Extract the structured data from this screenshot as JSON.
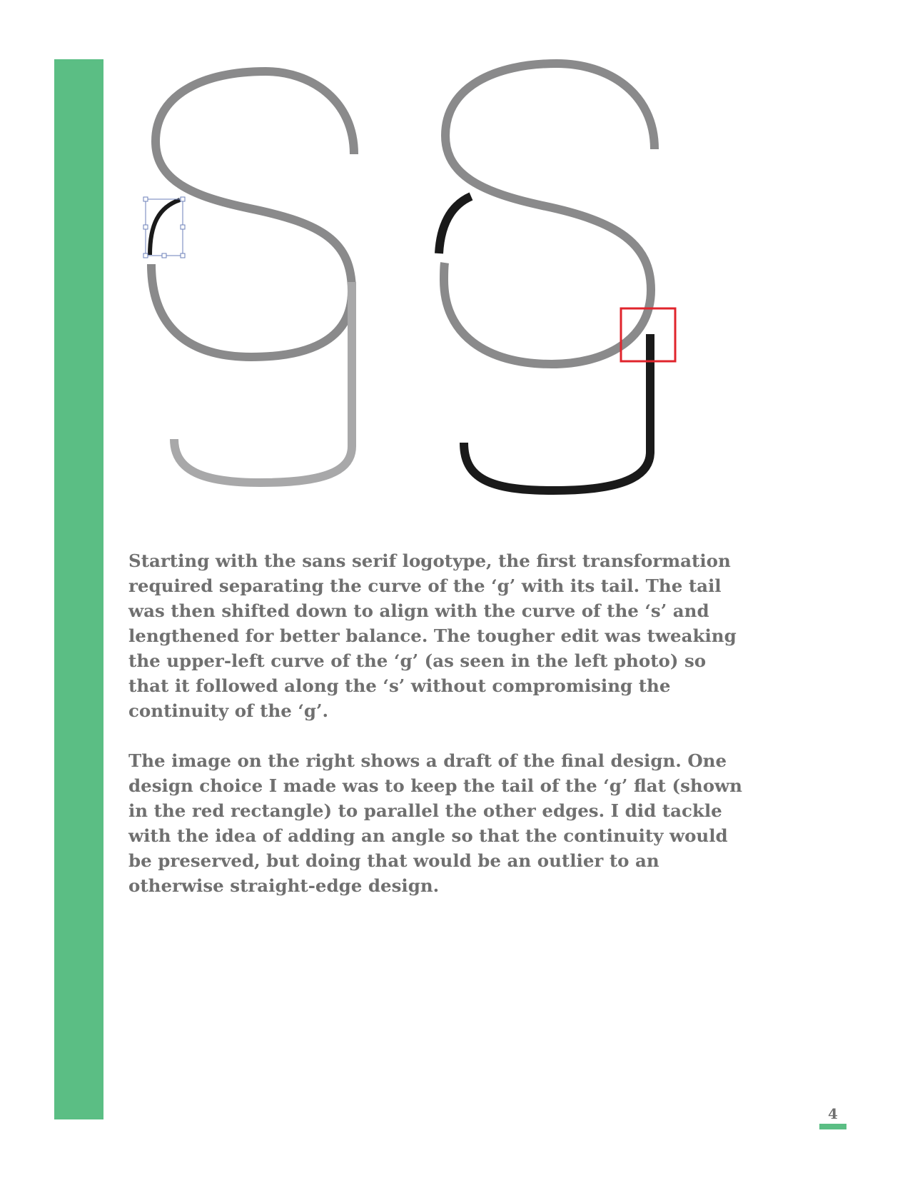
{
  "colors": {
    "accent_green": "#5bbe84",
    "text_gray": "#707070",
    "stroke_gray": "#8a8a8b",
    "stroke_light": "#a8a8a9",
    "stroke_black": "#1a1a1a",
    "highlight_red": "#e0242c",
    "handle_blue": "#6b7fb8"
  },
  "body": {
    "paragraphs": [
      "Starting with the sans serif logotype, the first transformation required separating the curve of the ‘g’ with its tail. The tail was then shifted down to align with the curve of the ‘s’ and lengthened for better balance. The tougher edit was tweaking the upper-left curve of the ‘g’ (as seen in the left photo) so that it followed along the ‘s’ without compromising the continuity of the ‘g’.",
      "The image on the right shows a draft of the final design. One design choice I made was to keep the tail of the ‘g’ flat (shown in the red rectangle) to parallel the other edges. I did tackle with the idea of adding an angle so that the continuity would be preserved, but doing that would be an outlier to an otherwise straight-edge design."
    ]
  },
  "footer": {
    "page_number": "4"
  }
}
